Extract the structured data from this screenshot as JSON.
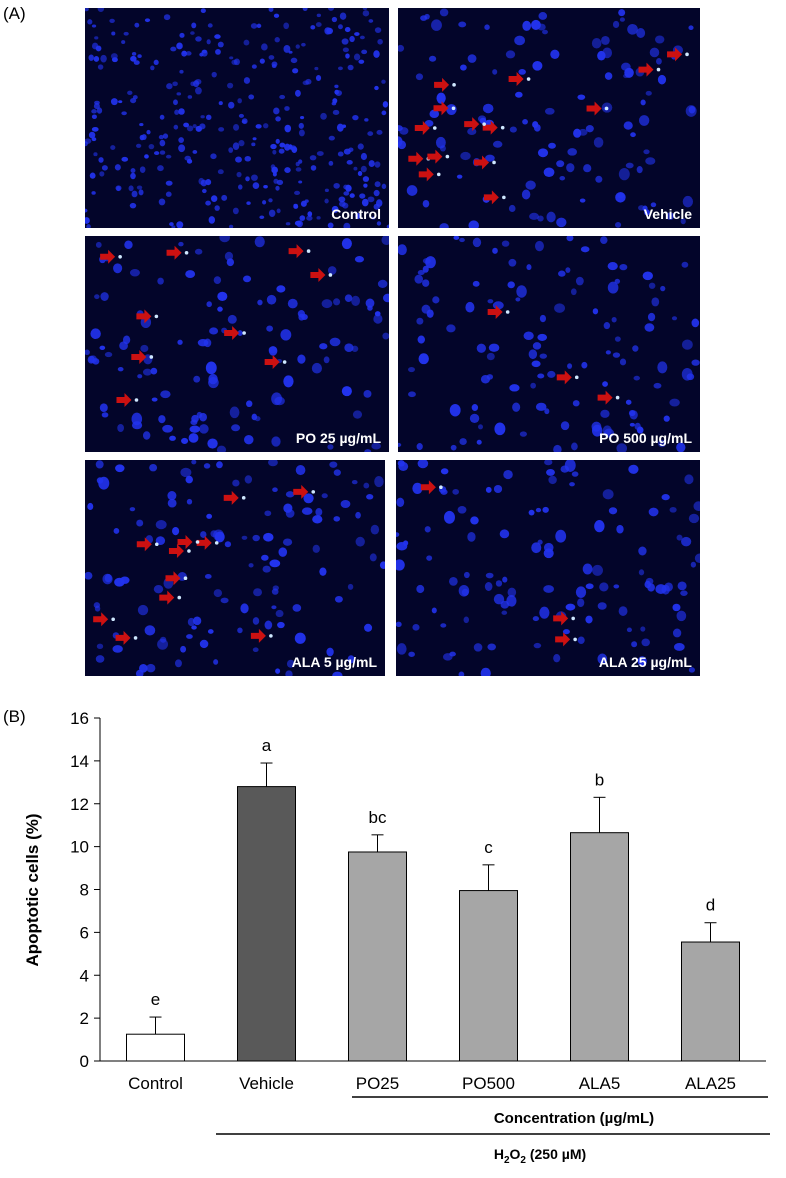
{
  "panel_a_letter": "(A)",
  "panel_b_letter": "(B)",
  "micrographs": [
    {
      "label": "Control",
      "arrows": 0
    },
    {
      "label": "Vehicle",
      "arrows": 14
    },
    {
      "label": "PO 25 µg/mL",
      "arrows": 9
    },
    {
      "label": "PO 500 µg/mL",
      "arrows": 3
    },
    {
      "label": "ALA 5 µg/mL",
      "arrows": 11
    },
    {
      "label": "ALA 25 µg/mL",
      "arrows": 3
    }
  ],
  "colors": {
    "background": "#03052a",
    "nuclei": "#2233ee",
    "arrow": "#cc1111"
  },
  "chart_data": {
    "type": "bar",
    "categories": [
      "Control",
      "Vehicle",
      "PO25",
      "PO500",
      "ALA5",
      "ALA25"
    ],
    "values": [
      1.25,
      12.8,
      9.75,
      7.95,
      10.65,
      5.55
    ],
    "errors": [
      0.8,
      1.1,
      0.8,
      1.2,
      1.65,
      0.9
    ],
    "significance": [
      "e",
      "a",
      "bc",
      "c",
      "b",
      "d"
    ],
    "bar_colors": [
      "#ffffff",
      "#595959",
      "#a6a6a6",
      "#a6a6a6",
      "#a6a6a6",
      "#a6a6a6"
    ],
    "ylabel": "Apoptotic cells (%)",
    "ylim": [
      0,
      16
    ],
    "yticks": [
      "0",
      "2",
      "4",
      "6",
      "8",
      "10",
      "12",
      "14",
      "16"
    ],
    "group_label": "Concentration (µg/mL)",
    "treatment_label_prefix": "H",
    "treatment_label_sub1": "2",
    "treatment_label_mid": "O",
    "treatment_label_sub2": "2",
    "treatment_label_suffix": " (250 µM)"
  }
}
